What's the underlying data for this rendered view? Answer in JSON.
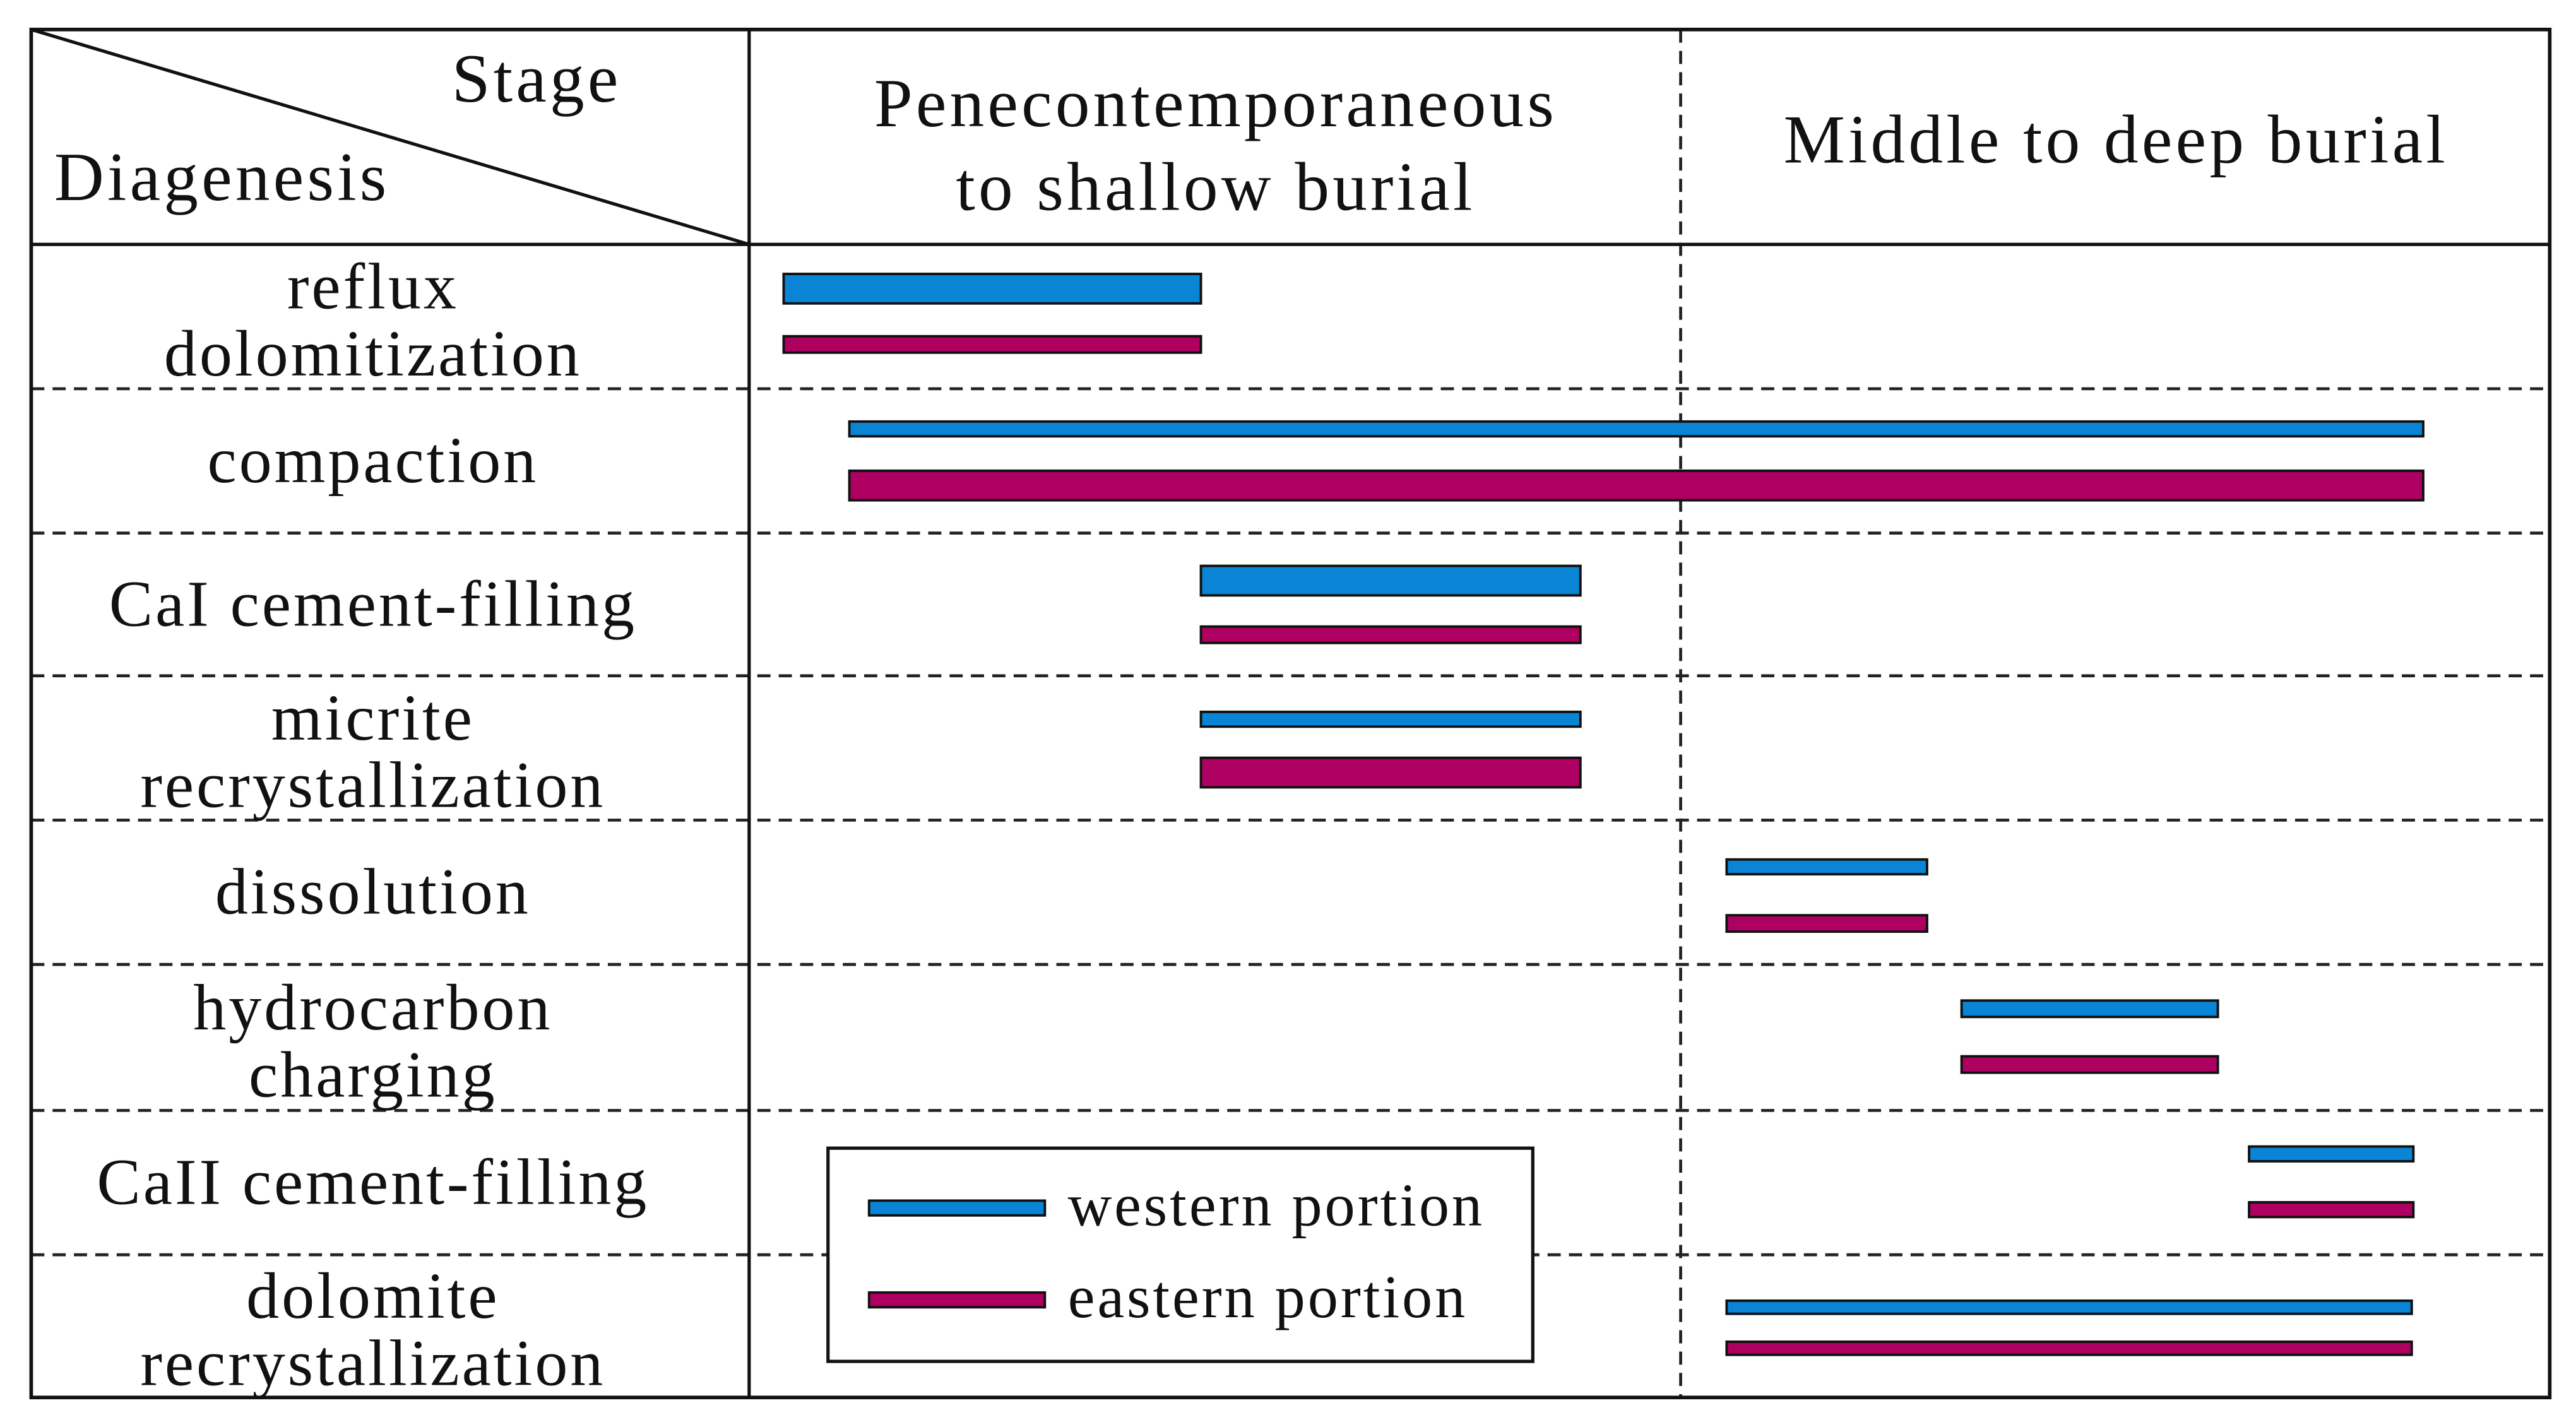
{
  "header": {
    "corner_top": "Stage",
    "corner_bottom": "Diagenesis",
    "stages": [
      {
        "lines": [
          "Penecontemporaneous",
          "to shallow burial"
        ]
      },
      {
        "lines": [
          "Middle to deep burial"
        ]
      }
    ]
  },
  "rows": [
    {
      "lines": [
        "reflux",
        "dolomitization"
      ]
    },
    {
      "lines": [
        "compaction"
      ]
    },
    {
      "lines": [
        "CaI cement-filling"
      ]
    },
    {
      "lines": [
        "micrite",
        "recrystallization"
      ]
    },
    {
      "lines": [
        "dissolution"
      ]
    },
    {
      "lines": [
        "hydrocarbon",
        "charging"
      ]
    },
    {
      "lines": [
        "CaII cement-filling"
      ]
    },
    {
      "lines": [
        "dolomite",
        "recrystallization"
      ]
    }
  ],
  "legend": {
    "western": {
      "label": "western portion",
      "color": "#0a84d4"
    },
    "eastern": {
      "label": "eastern portion",
      "color": "#ae0060"
    }
  }
}
